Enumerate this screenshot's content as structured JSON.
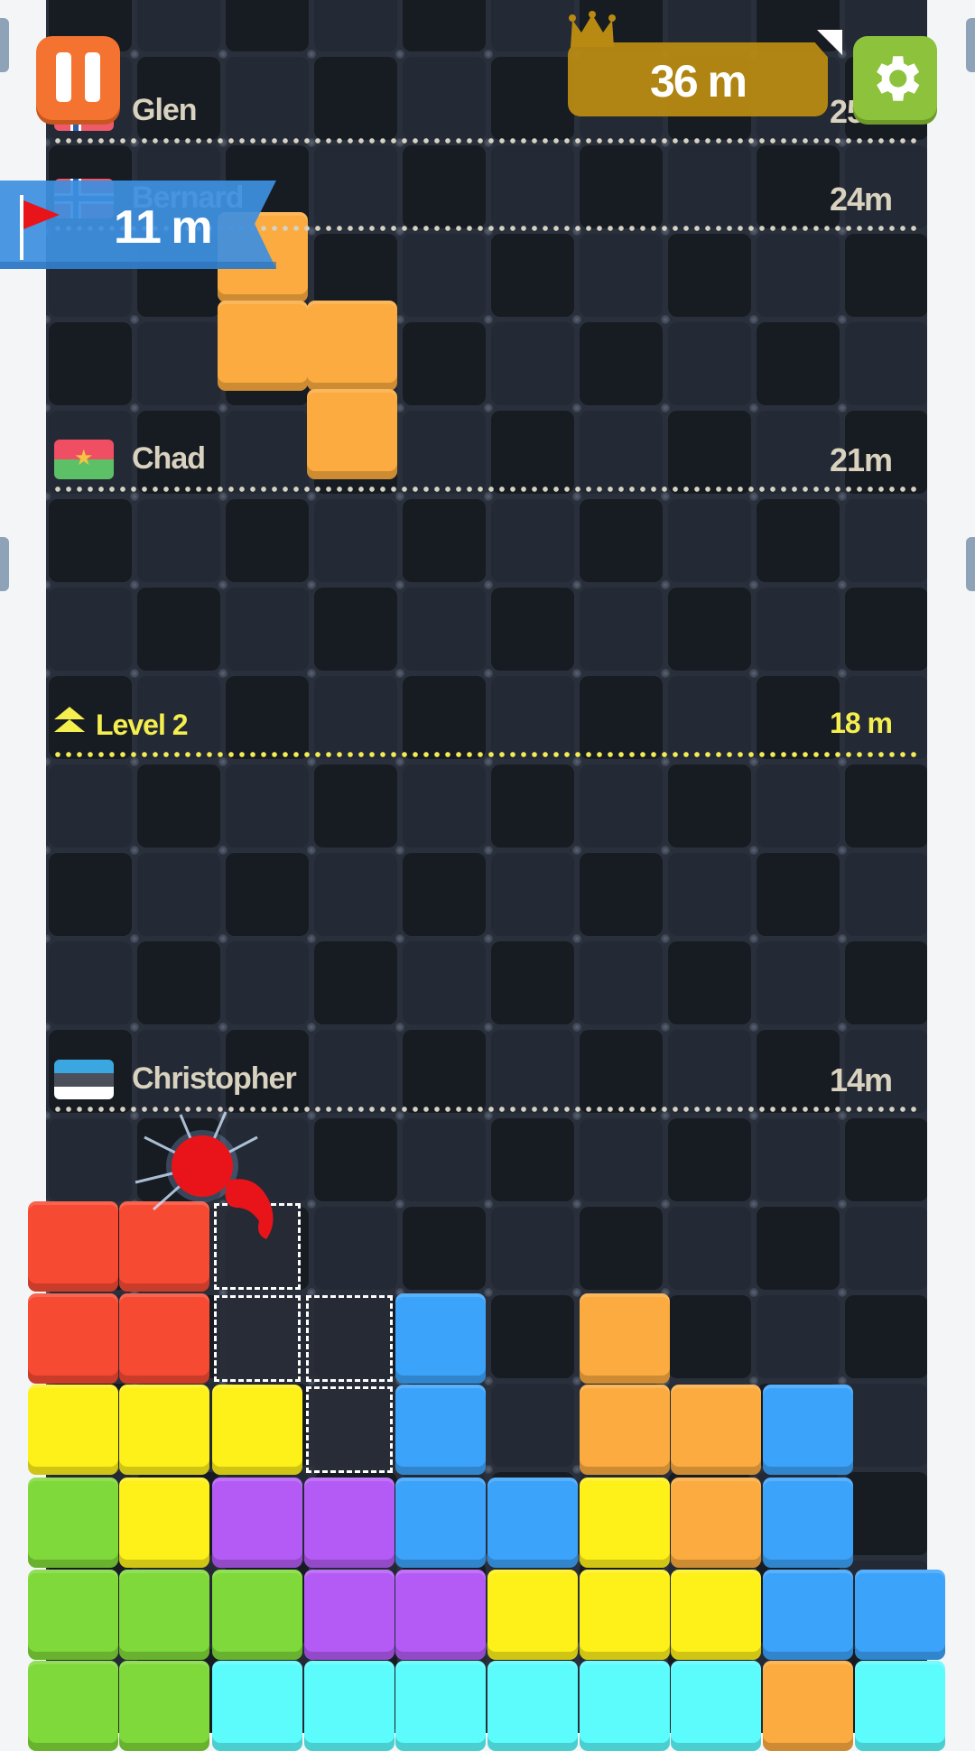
{
  "hud": {
    "pause_icon": "pause-icon",
    "best_height": "36 m",
    "best_icon": "crown-icon",
    "settings_icon": "gear-icon",
    "current_height": "11 m",
    "current_icon": "red-flag-icon",
    "colors": {
      "pause": "#f47331",
      "settings": "#8cc23c",
      "best": "#b88a12",
      "banner": "#3d8fe0"
    }
  },
  "markers": [
    {
      "name": "Glen",
      "distance": "25m",
      "flag": "norway"
    },
    {
      "name": "Bernard",
      "distance": "24m",
      "flag": "norway"
    },
    {
      "name": "Chad",
      "distance": "21m",
      "flag": "burkina-faso"
    },
    {
      "name": "Level 2",
      "distance": "18 m",
      "type": "level",
      "icon": "double-chevron-up-icon"
    },
    {
      "name": "Christopher",
      "distance": "14m",
      "flag": "estonia"
    }
  ],
  "falling_piece": {
    "color": "#fbab3f",
    "shape": "S-vertical"
  },
  "block_colors": {
    "red": "#f64a33",
    "yellow": "#fef019",
    "green": "#7fd93a",
    "purple": "#b45bf5",
    "blue": "#3ca3fb",
    "orange": "#fbab3f",
    "cyan": "#5cfcfd"
  },
  "stack_columns": [
    [
      "red",
      "red",
      "yellow",
      "green",
      "green",
      "green"
    ],
    [
      "red",
      "red",
      "yellow",
      "yellow",
      "green",
      "green"
    ],
    [
      "ghost",
      "ghost",
      "yellow",
      "purple",
      "green",
      "cyan"
    ],
    [
      null,
      "ghost",
      "ghost",
      "purple",
      "purple",
      "cyan"
    ],
    [
      null,
      "blue",
      "blue",
      "blue",
      "purple",
      "cyan"
    ],
    [
      null,
      null,
      null,
      "blue",
      "yellow",
      "cyan"
    ],
    [
      null,
      "orange",
      "orange",
      "yellow",
      "yellow",
      "cyan"
    ],
    [
      null,
      null,
      "orange",
      "orange",
      "yellow",
      "cyan"
    ],
    [
      null,
      null,
      "blue",
      "blue",
      "blue",
      "orange"
    ],
    [
      null,
      null,
      null,
      null,
      "blue",
      "cyan"
    ]
  ]
}
